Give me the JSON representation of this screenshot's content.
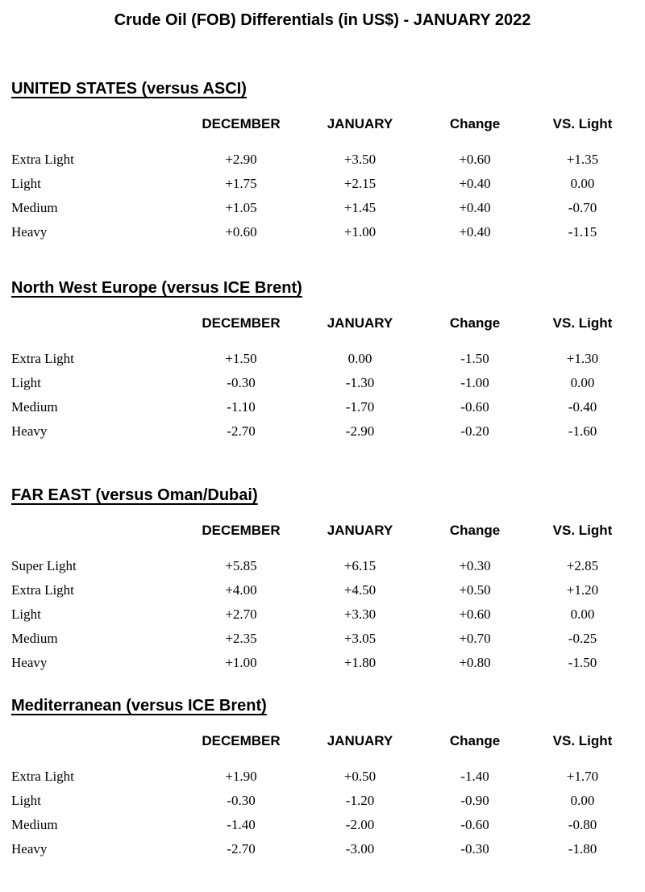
{
  "title": "Crude Oil (FOB) Differentials (in US$) - JANUARY 2022",
  "sections": [
    {
      "heading": "UNITED STATES  (versus ASCI)",
      "columns": [
        "DECEMBER",
        "JANUARY",
        "Change",
        "VS. Light"
      ],
      "rows": [
        {
          "label": "Extra Light",
          "values": [
            "+2.90",
            "+3.50",
            "+0.60",
            "+1.35"
          ]
        },
        {
          "label": "Light",
          "values": [
            "+1.75",
            "+2.15",
            "+0.40",
            "0.00"
          ]
        },
        {
          "label": "Medium",
          "values": [
            "+1.05",
            "+1.45",
            "+0.40",
            "-0.70"
          ]
        },
        {
          "label": "Heavy",
          "values": [
            "+0.60",
            "+1.00",
            "+0.40",
            "-1.15"
          ]
        }
      ]
    },
    {
      "heading": "North West Europe (versus ICE Brent)",
      "columns": [
        "DECEMBER",
        "JANUARY",
        "Change",
        "VS. Light"
      ],
      "rows": [
        {
          "label": "Extra Light",
          "values": [
            "+1.50",
            "0.00",
            "-1.50",
            "+1.30"
          ]
        },
        {
          "label": "Light",
          "values": [
            "-0.30",
            "-1.30",
            "-1.00",
            "0.00"
          ]
        },
        {
          "label": "Medium",
          "values": [
            "-1.10",
            "-1.70",
            "-0.60",
            "-0.40"
          ]
        },
        {
          "label": "Heavy",
          "values": [
            "-2.70",
            "-2.90",
            "-0.20",
            "-1.60"
          ]
        }
      ]
    },
    {
      "heading": "FAR EAST (versus Oman/Dubai)",
      "columns": [
        "DECEMBER",
        "JANUARY",
        "Change",
        "VS. Light"
      ],
      "rows": [
        {
          "label": "Super Light",
          "values": [
            "+5.85",
            "+6.15",
            "+0.30",
            "+2.85"
          ]
        },
        {
          "label": "Extra Light",
          "values": [
            "+4.00",
            "+4.50",
            "+0.50",
            "+1.20"
          ]
        },
        {
          "label": "Light",
          "values": [
            "+2.70",
            "+3.30",
            "+0.60",
            "0.00"
          ]
        },
        {
          "label": "Medium",
          "values": [
            "+2.35",
            "+3.05",
            "+0.70",
            "-0.25"
          ]
        },
        {
          "label": "Heavy",
          "values": [
            "+1.00",
            "+1.80",
            "+0.80",
            "-1.50"
          ]
        }
      ]
    },
    {
      "heading": "Mediterranean (versus ICE Brent)",
      "columns": [
        "DECEMBER",
        "JANUARY",
        "Change",
        "VS. Light"
      ],
      "rows": [
        {
          "label": "Extra Light",
          "values": [
            "+1.90",
            "+0.50",
            "-1.40",
            "+1.70"
          ]
        },
        {
          "label": "Light",
          "values": [
            "-0.30",
            "-1.20",
            "-0.90",
            "0.00"
          ]
        },
        {
          "label": "Medium",
          "values": [
            "-1.40",
            "-2.00",
            "-0.60",
            "-0.80"
          ]
        },
        {
          "label": "Heavy",
          "values": [
            "-2.70",
            "-3.00",
            "-0.30",
            "-1.80"
          ]
        }
      ]
    }
  ]
}
